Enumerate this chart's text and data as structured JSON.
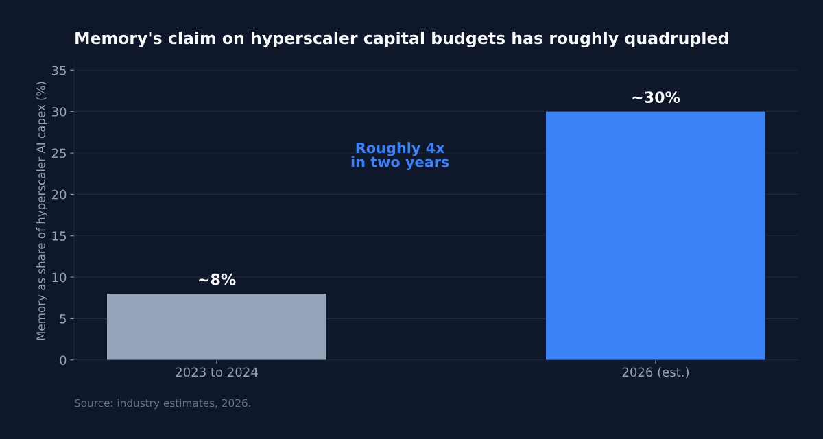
{
  "chart_data": {
    "type": "bar",
    "title": "Memory's claim on hyperscaler capital budgets has roughly quadrupled",
    "ylabel": "Memory as share of hyperscaler AI capex (%)",
    "categories": [
      "2023 to 2024",
      "2026 (est.)"
    ],
    "values": [
      8,
      30
    ],
    "colors": [
      "#94a3b8",
      "#3b82f6"
    ],
    "value_labels": [
      "~8%",
      "~30%"
    ],
    "ylim": [
      0,
      36
    ],
    "yticks": [
      0,
      5,
      10,
      15,
      20,
      25,
      30,
      35
    ],
    "grid": "y",
    "legend": false,
    "annotations": [
      "Roughly 4x\nin two years",
      "Source: industry estimates, 2026."
    ]
  }
}
